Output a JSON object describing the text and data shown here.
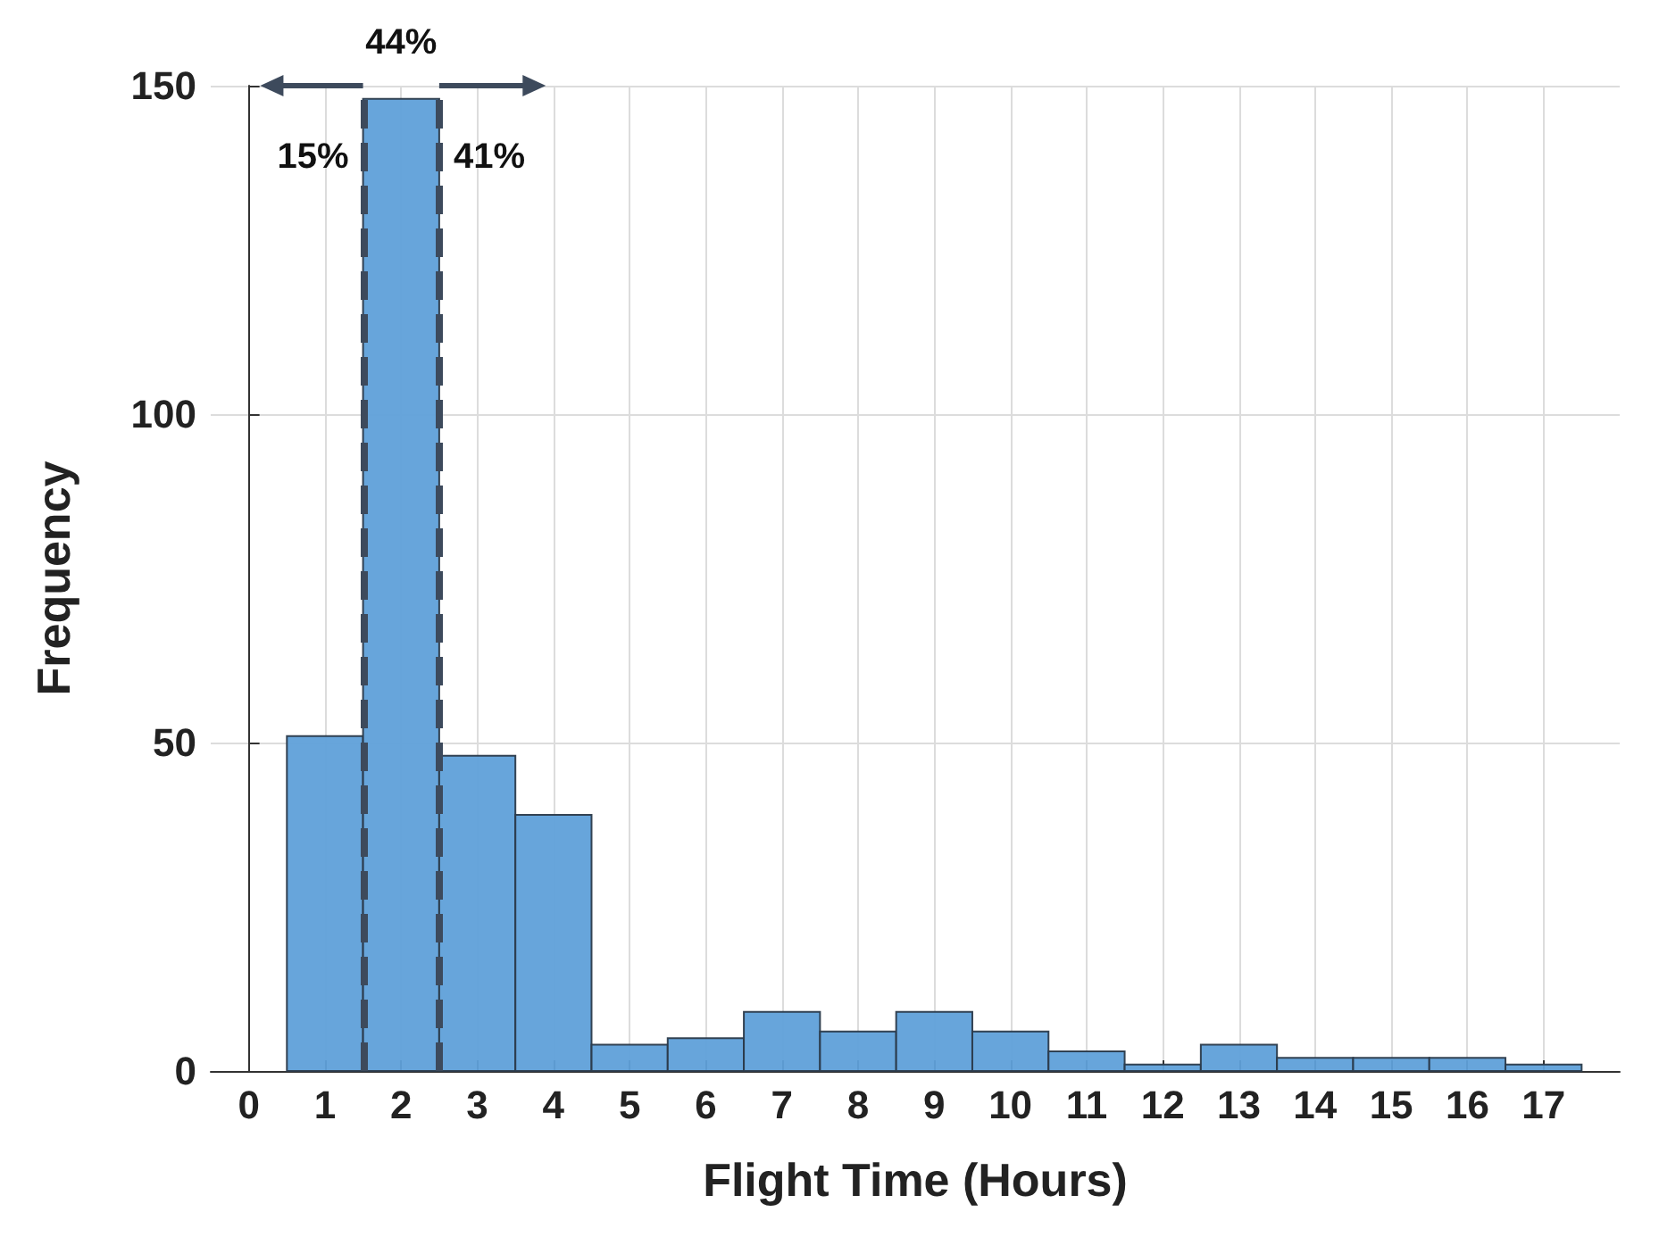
{
  "chart_data": {
    "type": "histogram",
    "xlabel": "Flight Time (Hours)",
    "ylabel": "Frequency",
    "bins": [
      0.5,
      1.5,
      2.5,
      3.5,
      4.5,
      5.5,
      6.5,
      7.5,
      8.5,
      9.5,
      10.5,
      11.5,
      12.5,
      13.5,
      14.5,
      15.5,
      16.5,
      17.5
    ],
    "values": [
      51,
      148,
      48,
      39,
      4,
      5,
      9,
      6,
      9,
      6,
      3,
      1,
      4,
      2,
      2,
      2,
      1
    ],
    "color": "#5fa0d9",
    "xlim": [
      -0.5,
      18
    ],
    "xticks": [
      0,
      1,
      2,
      3,
      4,
      5,
      6,
      7,
      8,
      9,
      10,
      11,
      12,
      13,
      14,
      15,
      16,
      17
    ],
    "ylim": [
      0,
      150
    ],
    "yticks": [
      0,
      50,
      100,
      150
    ],
    "grid": true,
    "ref_lines": [
      {
        "axis": "x",
        "value": 1.5,
        "color": "#3d4a5c",
        "line_style": "dashed"
      },
      {
        "axis": "x",
        "value": 2.5,
        "color": "#3d4a5c",
        "line_style": "dashed"
      }
    ],
    "annotations": [
      "44%",
      "15%",
      "41%"
    ]
  }
}
